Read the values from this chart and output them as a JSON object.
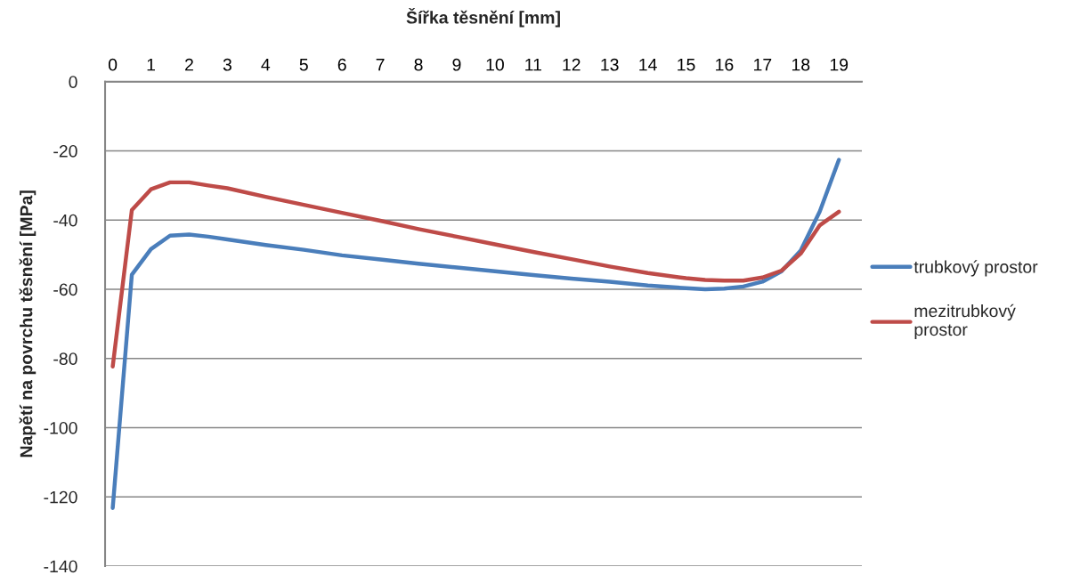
{
  "chart_data": {
    "type": "line",
    "xlabel": "Šířka těsnění [mm]",
    "ylabel": "Napětí na povrchu těsnění [MPa]",
    "x": [
      0,
      0.5,
      1,
      1.5,
      2,
      2.5,
      3,
      4,
      5,
      6,
      7,
      8,
      9,
      10,
      11,
      12,
      13,
      14,
      15,
      15.5,
      16,
      16.5,
      17,
      17.5,
      18,
      18.5,
      19
    ],
    "series": [
      {
        "name": "trubkový prostor",
        "color": "#4a7ebb",
        "values": [
          -123.2,
          -55.8,
          -48.4,
          -44.5,
          -44.2,
          -44.8,
          -45.6,
          -47.2,
          -48.6,
          -50.2,
          -51.4,
          -52.6,
          -53.7,
          -54.8,
          -55.9,
          -56.9,
          -57.8,
          -58.9,
          -59.7,
          -60,
          -59.8,
          -59.2,
          -57.8,
          -54.8,
          -48.8,
          -37.5,
          -22.6
        ]
      },
      {
        "name": "mezitrubkový\nprostor",
        "color": "#be4b48",
        "values": [
          -82.3,
          -37.1,
          -31.1,
          -29.1,
          -29.1,
          -30.0,
          -30.8,
          -33.3,
          -35.6,
          -37.9,
          -40.2,
          -42.6,
          -44.8,
          -47,
          -49.2,
          -51.3,
          -53.4,
          -55.3,
          -56.8,
          -57.3,
          -57.5,
          -57.5,
          -56.6,
          -54.6,
          -49.7,
          -41.5,
          -37.6
        ]
      }
    ],
    "xlim": [
      -0.2,
      19.6
    ],
    "xticks": [
      0,
      1,
      2,
      3,
      4,
      5,
      6,
      7,
      8,
      9,
      10,
      11,
      12,
      13,
      14,
      15,
      16,
      17,
      18,
      19
    ],
    "ylim": [
      -140,
      0
    ],
    "yticks": [
      -140,
      -120,
      -100,
      -80,
      -60,
      -40,
      -20,
      0
    ],
    "grid": "y",
    "legend": "right",
    "marker": "none",
    "line_style": "solid"
  }
}
